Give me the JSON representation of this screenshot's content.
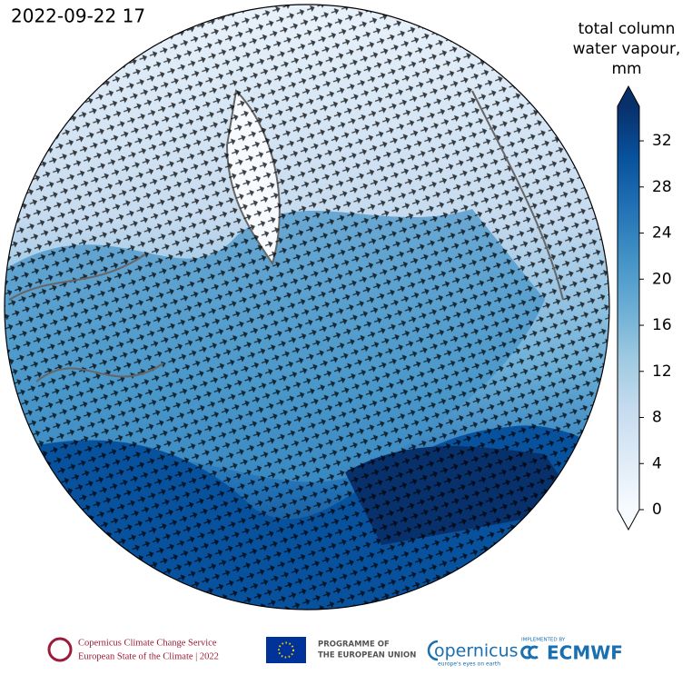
{
  "timestamp": "2022-09-22 17",
  "colorbar": {
    "title": [
      "total column",
      "water vapour,",
      "mm"
    ],
    "lim": [
      0,
      35
    ],
    "ticks": [
      0,
      4,
      8,
      12,
      16,
      20,
      24,
      28,
      32
    ],
    "colormap": [
      "#f7fbff",
      "#deebf7",
      "#c6dbef",
      "#9ecae1",
      "#6baed6",
      "#4292c6",
      "#2171b5",
      "#08519c",
      "#08306b"
    ]
  },
  "footer": {
    "c3s": [
      "Copernicus Climate Change Service",
      "European State of the Climate | 2022"
    ],
    "eu": [
      "PROGRAMME OF",
      "THE EUROPEAN UNION"
    ],
    "copernicus": [
      "opernicus",
      "europe's eyes on earth"
    ],
    "ecmwf": [
      "IMPLEMENTED BY",
      "ECMWF"
    ]
  }
}
